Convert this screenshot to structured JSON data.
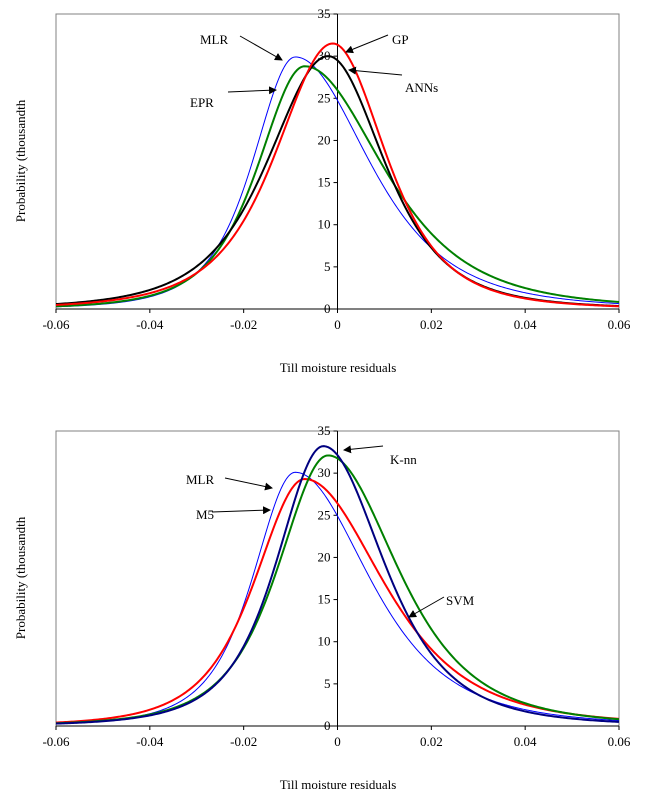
{
  "chart_data": [
    {
      "type": "line",
      "xlabel": "Till moisture residuals",
      "ylabel": "Probability (thousandth",
      "xlim": [
        -0.06,
        0.06
      ],
      "ylim": [
        0,
        35
      ],
      "x_ticks": [
        "-0.06",
        "-0.04",
        "-0.02",
        "0",
        "0.02",
        "0.04",
        "0.06"
      ],
      "y_ticks": [
        "0",
        "5",
        "10",
        "15",
        "20",
        "25",
        "30",
        "35"
      ],
      "grid": false,
      "series": [
        {
          "name": "MLR",
          "color": "#0000ff",
          "peak_x": -0.009,
          "peak_y": 29.9,
          "sigma_left": 0.0095,
          "sigma_right": 0.0165
        },
        {
          "name": "EPR",
          "color": "#008000",
          "peak_x": -0.007,
          "peak_y": 28.8,
          "sigma_left": 0.0105,
          "sigma_right": 0.0175
        },
        {
          "name": "ANNs",
          "color": "#000000",
          "peak_x": -0.002,
          "peak_y": 30.0,
          "sigma_left": 0.0135,
          "sigma_right": 0.0125
        },
        {
          "name": "GP",
          "color": "#ff0000",
          "peak_x": -0.001,
          "peak_y": 31.5,
          "sigma_left": 0.0128,
          "sigma_right": 0.0118
        }
      ],
      "annotations": [
        "MLR",
        "GP",
        "ANNs",
        "EPR"
      ]
    },
    {
      "type": "line",
      "xlabel": "Till moisture residuals",
      "ylabel": "Probability (thousandth",
      "xlim": [
        -0.06,
        0.06
      ],
      "ylim": [
        0,
        35
      ],
      "x_ticks": [
        "-0.06",
        "-0.04",
        "-0.02",
        "0",
        "0.02",
        "0.04",
        "0.06"
      ],
      "y_ticks": [
        "0",
        "5",
        "10",
        "15",
        "20",
        "25",
        "30",
        "35"
      ],
      "grid": false,
      "series": [
        {
          "name": "MLR",
          "color": "#0000ff",
          "peak_x": -0.009,
          "peak_y": 30.1,
          "sigma_left": 0.0095,
          "sigma_right": 0.0165
        },
        {
          "name": "M5",
          "color": "#ff0000",
          "peak_x": -0.007,
          "peak_y": 29.3,
          "sigma_left": 0.0112,
          "sigma_right": 0.0175
        },
        {
          "name": "SVM",
          "color": "#008000",
          "peak_x": -0.002,
          "peak_y": 32.1,
          "sigma_left": 0.0112,
          "sigma_right": 0.0155
        },
        {
          "name": "K-nn",
          "color": "#000080",
          "peak_x": -0.003,
          "peak_y": 33.2,
          "sigma_left": 0.0105,
          "sigma_right": 0.0135
        }
      ],
      "annotations": [
        "MLR",
        "M5",
        "K-nn",
        "SVM"
      ]
    }
  ]
}
